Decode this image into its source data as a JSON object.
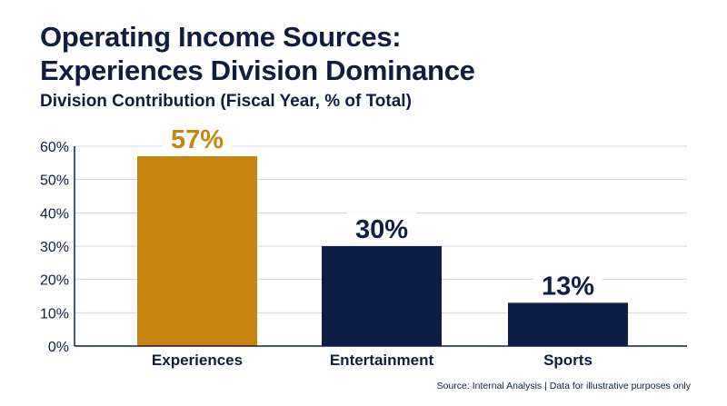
{
  "header": {
    "title_line1": "Operating Income Sources:",
    "title_line2": "Experiences Division Dominance",
    "subtitle": "Division Contribution (Fiscal Year, % of Total)"
  },
  "chart_data": {
    "type": "bar",
    "title": "Operating Income Sources: Experiences Division Dominance",
    "subtitle": "Division Contribution (Fiscal Year, % of Total)",
    "categories": [
      "Experiences",
      "Entertainment",
      "Sports"
    ],
    "values": [
      57,
      30,
      13
    ],
    "data_labels": [
      "57%",
      "30%",
      "13%"
    ],
    "bar_colors": [
      "#c7850d",
      "#0e1e45",
      "#0e1e45"
    ],
    "label_colors": [
      "#c7850d",
      "#0e1e45",
      "#0e1e45"
    ],
    "ylim": [
      0,
      60
    ],
    "yticks": [
      0,
      10,
      20,
      30,
      40,
      50,
      60
    ],
    "ytick_labels": [
      "0%",
      "10%",
      "20%",
      "30%",
      "40%",
      "50%",
      "60%"
    ],
    "grid": true,
    "xlabel": "",
    "ylabel": ""
  },
  "footer": {
    "source": "Source: Internal Analysis | Data for illustrative purposes only"
  }
}
